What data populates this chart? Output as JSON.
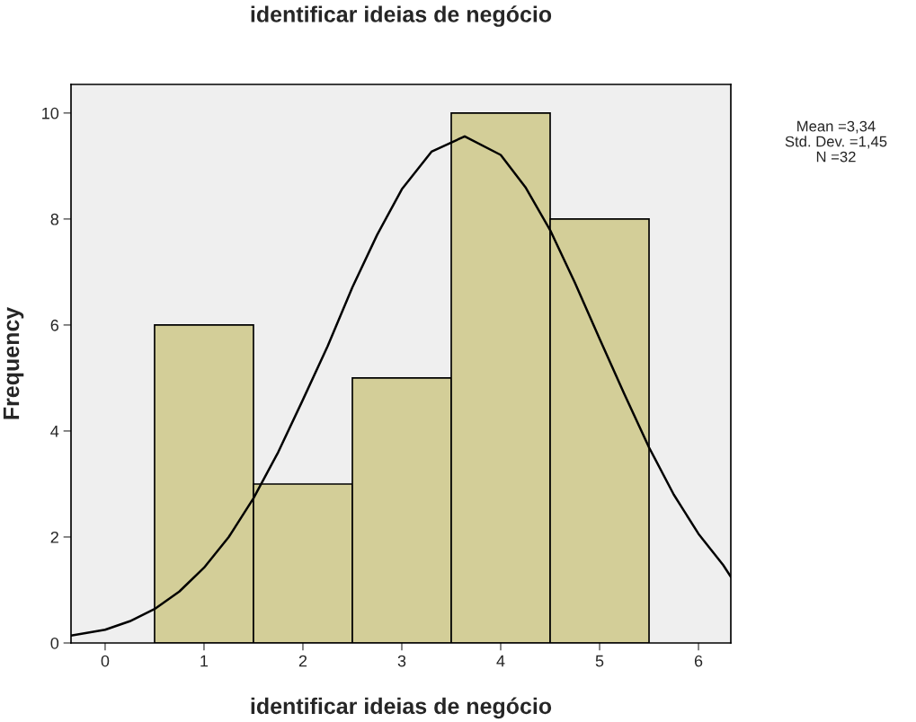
{
  "chart_data": {
    "type": "histogram",
    "title": "identificar ideias de negócio",
    "xlabel": "identificar ideias de negócio",
    "ylabel": "Frequency",
    "bins": [
      0.5,
      1.5,
      2.5,
      3.5,
      4.5,
      5.5
    ],
    "values": [
      6,
      3,
      5,
      10,
      8
    ],
    "color": "#d3ce98",
    "series": [
      {
        "type": "line",
        "color": "#000000",
        "x": [
          -0.345,
          0,
          0.25,
          0.5,
          0.75,
          1,
          1.25,
          1.5,
          1.75,
          2,
          2.25,
          2.5,
          2.75,
          3,
          3.3,
          3.636,
          4,
          4.25,
          4.5,
          4.75,
          5,
          5.25,
          5.5,
          5.75,
          6,
          6.25,
          6.327
        ],
        "values": [
          0.14,
          0.25,
          0.41,
          0.64,
          0.97,
          1.42,
          2.0,
          2.73,
          3.6,
          4.59,
          5.6,
          6.71,
          7.7,
          8.56,
          9.27,
          9.56,
          9.21,
          8.6,
          7.79,
          6.8,
          5.74,
          4.7,
          3.69,
          2.8,
          2.06,
          1.47,
          1.25
        ]
      }
    ],
    "xlim": [
      -0.345,
      6.327
    ],
    "ylim": [
      0,
      10.54
    ],
    "xticks": [
      0,
      1,
      2,
      3,
      4,
      5,
      6
    ],
    "yticks": [
      0,
      2,
      4,
      6,
      8,
      10
    ],
    "grid": false,
    "legend": false,
    "annotations": [
      "Mean =3,34",
      "Std. Dev. =1,45",
      "N =32"
    ]
  }
}
